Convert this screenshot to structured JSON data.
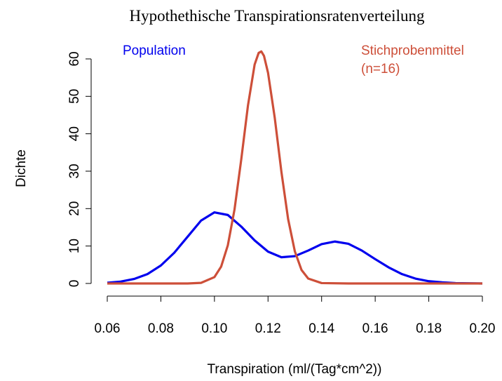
{
  "chart_data": {
    "type": "line",
    "title": "Hypothethische Transpirationsratenverteilung",
    "xlabel": "Transpiration (ml/(Tag*cm^2))",
    "ylabel": "Dichte",
    "xlim": [
      0.0544,
      0.2056
    ],
    "ylim": [
      -2.48,
      64.4
    ],
    "xticks": [
      {
        "value": 0.06,
        "label": "0.06"
      },
      {
        "value": 0.08,
        "label": "0.08"
      },
      {
        "value": 0.1,
        "label": "0.10"
      },
      {
        "value": 0.12,
        "label": "0.12"
      },
      {
        "value": 0.14,
        "label": "0.14"
      },
      {
        "value": 0.16,
        "label": "0.16"
      },
      {
        "value": 0.18,
        "label": "0.18"
      },
      {
        "value": 0.2,
        "label": "0.20"
      }
    ],
    "yticks": [
      0,
      10,
      20,
      30,
      40,
      50,
      60
    ],
    "series": [
      {
        "name": [
          "Population"
        ],
        "color": "#0000ee",
        "x": [
          0.06,
          0.065,
          0.07,
          0.075,
          0.08,
          0.085,
          0.09,
          0.095,
          0.1,
          0.105,
          0.11,
          0.115,
          0.12,
          0.125,
          0.13,
          0.135,
          0.14,
          0.145,
          0.15,
          0.155,
          0.16,
          0.165,
          0.17,
          0.175,
          0.18,
          0.185,
          0.19,
          0.195,
          0.2
        ],
        "values": [
          0.2,
          0.5,
          1.2,
          2.5,
          4.8,
          8.2,
          12.5,
          16.8,
          19.0,
          18.3,
          15.2,
          11.5,
          8.5,
          7.0,
          7.3,
          8.8,
          10.5,
          11.2,
          10.6,
          8.8,
          6.5,
          4.3,
          2.5,
          1.3,
          0.6,
          0.3,
          0.1,
          0.05,
          0
        ]
      },
      {
        "name": [
          "Stichprobenmittel",
          "(n=16)"
        ],
        "color": "#cd4f39",
        "x": [
          0.06,
          0.09,
          0.095,
          0.1,
          0.1025,
          0.105,
          0.1075,
          0.11,
          0.1125,
          0.115,
          0.1165,
          0.1175,
          0.1185,
          0.12,
          0.1225,
          0.125,
          0.1275,
          0.13,
          0.1325,
          0.135,
          0.14,
          0.15,
          0.2
        ],
        "values": [
          0,
          0,
          0.16,
          1.7,
          4.5,
          10.2,
          19.8,
          33.1,
          47.5,
          58.5,
          61.6,
          62,
          60.8,
          56.3,
          44.3,
          29.8,
          17.2,
          8.6,
          3.6,
          1.3,
          0.1,
          0,
          0
        ]
      }
    ]
  }
}
